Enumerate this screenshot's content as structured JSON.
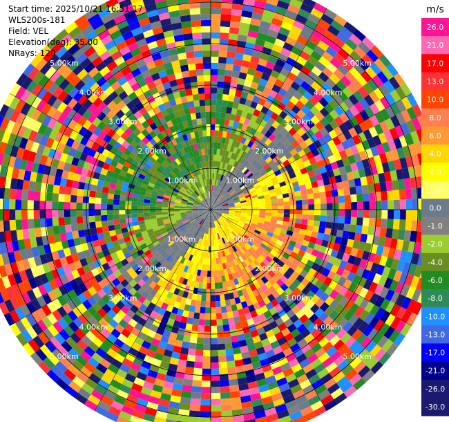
{
  "info": {
    "start_time": "Start time: 2025/10/21 16:51:17",
    "station": "WLS200s-181",
    "field": "Field: VEL",
    "elevation": "Elevation(deg): 35.00",
    "nrays": "NRays: 120"
  },
  "chart_data": {
    "type": "heatmap",
    "projection": "polar-ppi",
    "field": "VEL",
    "units": "m/s",
    "n_rays": 120,
    "elevation_deg": 35.0,
    "range_rings_km": [
      1.0,
      2.0,
      3.0,
      4.0,
      5.0
    ],
    "range_ring_labels": [
      "1.00km",
      "2.00km",
      "3.00km",
      "4.00km",
      "5.00km"
    ],
    "max_range_km": 5.6,
    "colorbar": {
      "title": "m/s",
      "levels": [
        "26.0",
        "21.0",
        "17.0",
        "13.0",
        "10.0",
        "8.0",
        "6.0",
        "4.0",
        "2.0",
        "1.0",
        "0.0",
        "-1.0",
        "-2.0",
        "-4.0",
        "-6.0",
        "-8.0",
        "-10.0",
        "-13.0",
        "-17.0",
        "-21.0",
        "-26.0",
        "-30.0"
      ],
      "colors": [
        "#ff1493",
        "#ff69b4",
        "#ff0000",
        "#ff3333",
        "#ff4500",
        "#ff7f50",
        "#ff9933",
        "#ffd700",
        "#ffff00",
        "#ffff66",
        "#6b7b8c",
        "#808080",
        "#9acd32",
        "#6b8e23",
        "#228b22",
        "#2e8b57",
        "#1e90ff",
        "#4169e1",
        "#0000ff",
        "#00008b",
        "#191970",
        "#1a1a6e"
      ]
    },
    "summary": {
      "inner_region": "Near-range velocities are low: approach (green, -1 to -8 m/s) on the north-west side and recession (yellow/orange, +2 to +10 m/s) on the south-east side, neutral gray near the radar.",
      "outer_region": "Beyond about 2.5 km the returns are noise with random colors across the whole scale."
    }
  }
}
